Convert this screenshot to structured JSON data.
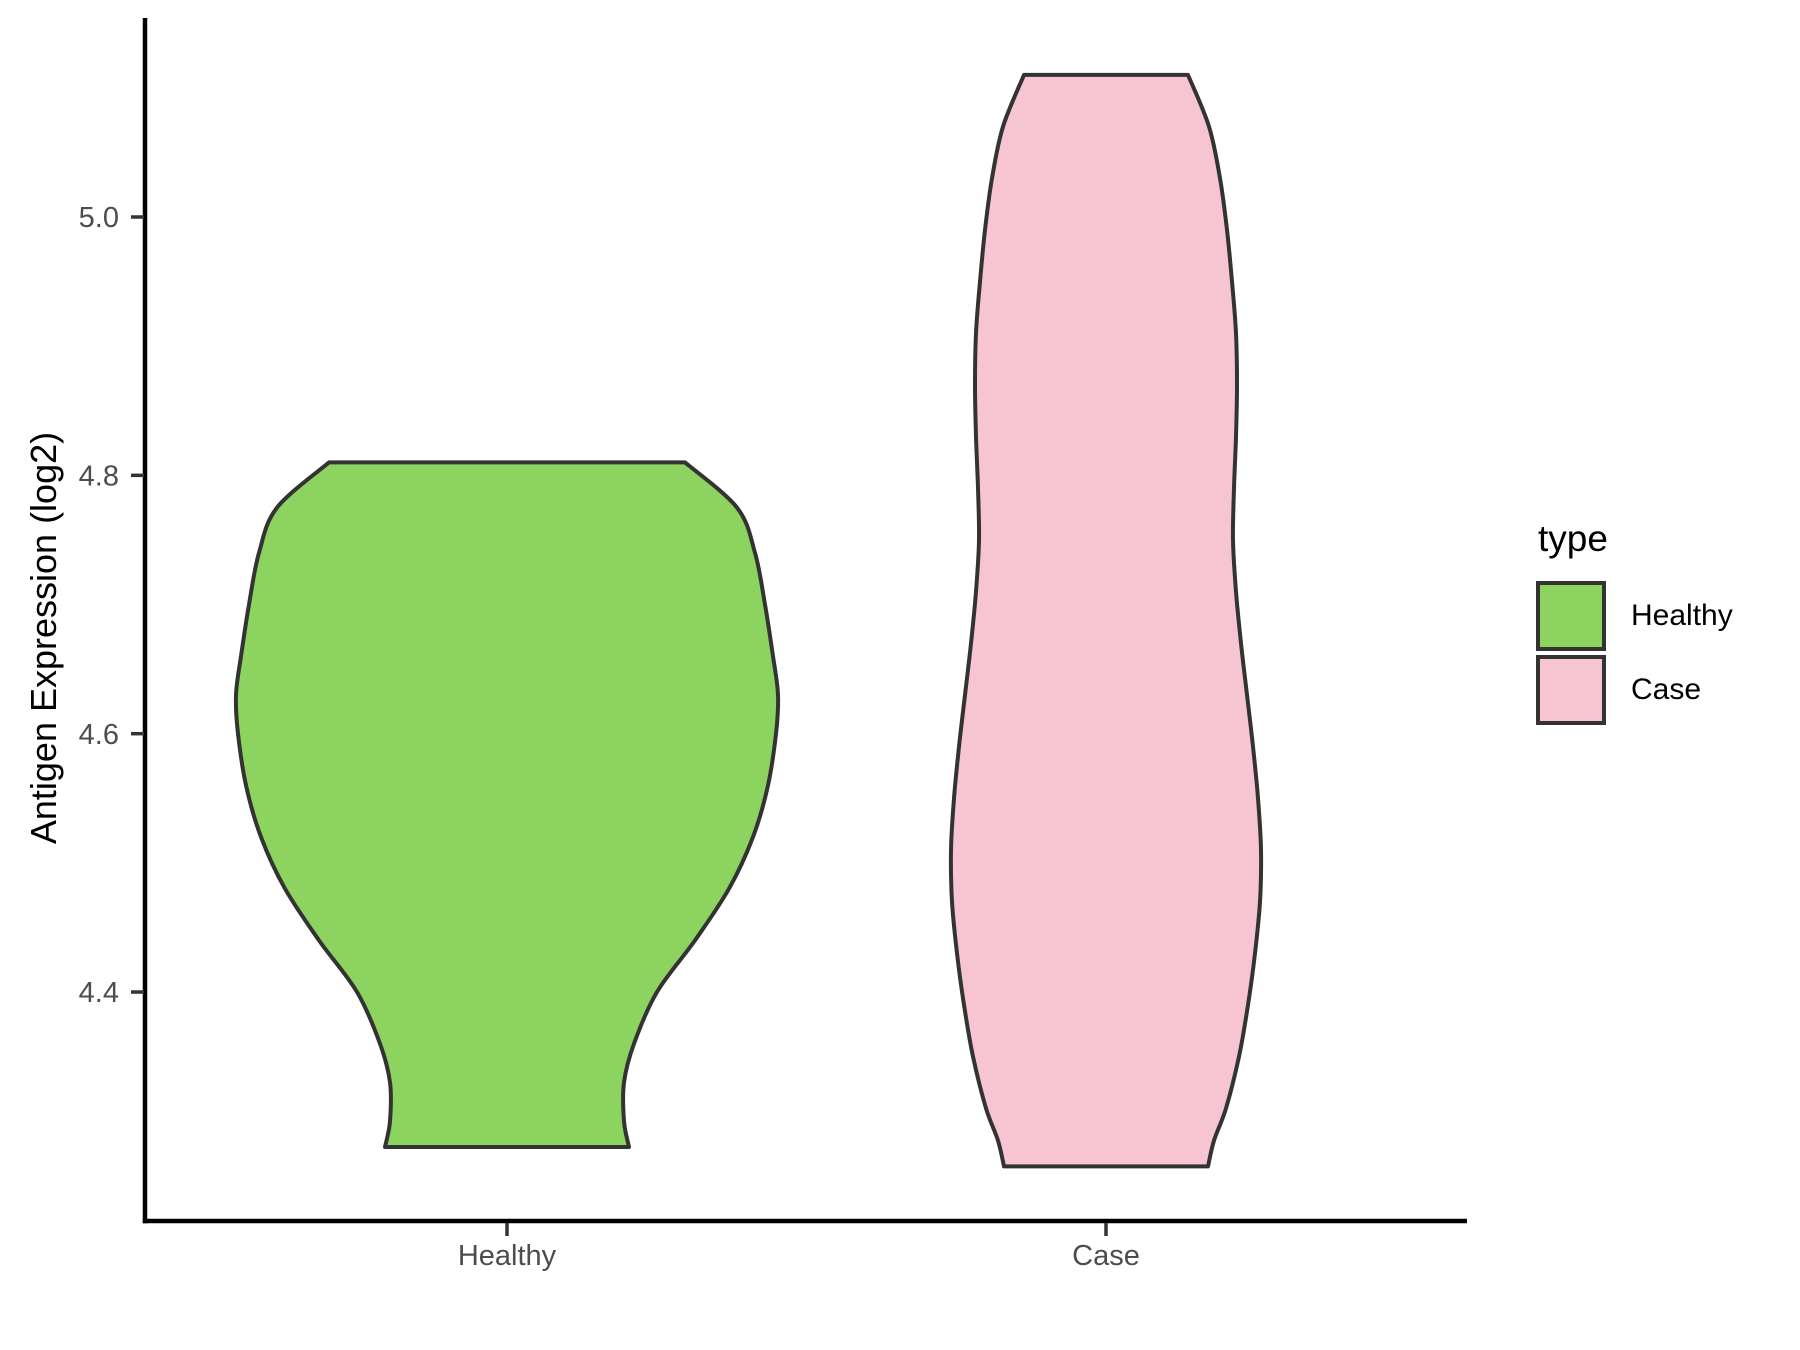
{
  "figure": {
    "background": "#ffffff",
    "axis_line_color": "#000000",
    "violin_outline_color": "#333333",
    "tick_label_color": "#4d4d4d",
    "y_axis": {
      "title": "Antigen Expression (log2)",
      "tick_labels": [
        "5.0",
        "4.8",
        "4.6",
        "4.4"
      ],
      "tick_values": [
        5.0,
        4.8,
        4.6,
        4.4
      ]
    },
    "x_axis": {
      "tick_labels": [
        "Healthy",
        "Case"
      ]
    },
    "legend": {
      "title": "type",
      "entries": [
        {
          "label": "Healthy",
          "color": "#8DD35F"
        },
        {
          "label": "Case",
          "color": "#F7C5D1"
        }
      ]
    }
  },
  "chart_data": {
    "type": "violin",
    "title": "",
    "xlabel": "",
    "ylabel": "Antigen Expression (log2)",
    "categories": [
      "Healthy",
      "Case"
    ],
    "ylim": [
      4.22,
      5.15
    ],
    "yticks": [
      4.4,
      4.6,
      4.8,
      5.0
    ],
    "grid": false,
    "legend_title": "type",
    "legend_position": "right",
    "series": [
      {
        "name": "Healthy",
        "fill": "#8DD35F",
        "outline": "#333333",
        "value_range": [
          4.28,
          4.81
        ],
        "profile": [
          [
            4.81,
            178
          ],
          [
            4.775,
            230
          ],
          [
            4.74,
            248
          ],
          [
            4.7,
            258
          ],
          [
            4.66,
            266
          ],
          [
            4.63,
            271
          ],
          [
            4.6,
            269
          ],
          [
            4.56,
            261
          ],
          [
            4.52,
            246
          ],
          [
            4.48,
            222
          ],
          [
            4.44,
            188
          ],
          [
            4.4,
            150
          ],
          [
            4.36,
            127
          ],
          [
            4.33,
            117
          ],
          [
            4.3,
            117
          ],
          [
            4.28,
            122
          ]
        ]
      },
      {
        "name": "Case",
        "fill": "#F7C5D1",
        "outline": "#333333",
        "value_range": [
          4.265,
          5.11
        ],
        "profile": [
          [
            5.11,
            82
          ],
          [
            5.07,
            103
          ],
          [
            5.03,
            114
          ],
          [
            4.99,
            121
          ],
          [
            4.95,
            126
          ],
          [
            4.91,
            130
          ],
          [
            4.87,
            131
          ],
          [
            4.83,
            130
          ],
          [
            4.79,
            128
          ],
          [
            4.75,
            127
          ],
          [
            4.71,
            130
          ],
          [
            4.67,
            135
          ],
          [
            4.63,
            141
          ],
          [
            4.59,
            147
          ],
          [
            4.55,
            152
          ],
          [
            4.51,
            155
          ],
          [
            4.47,
            154
          ],
          [
            4.43,
            149
          ],
          [
            4.39,
            142
          ],
          [
            4.35,
            133
          ],
          [
            4.31,
            120
          ],
          [
            4.285,
            108
          ],
          [
            4.265,
            102
          ]
        ]
      }
    ]
  }
}
